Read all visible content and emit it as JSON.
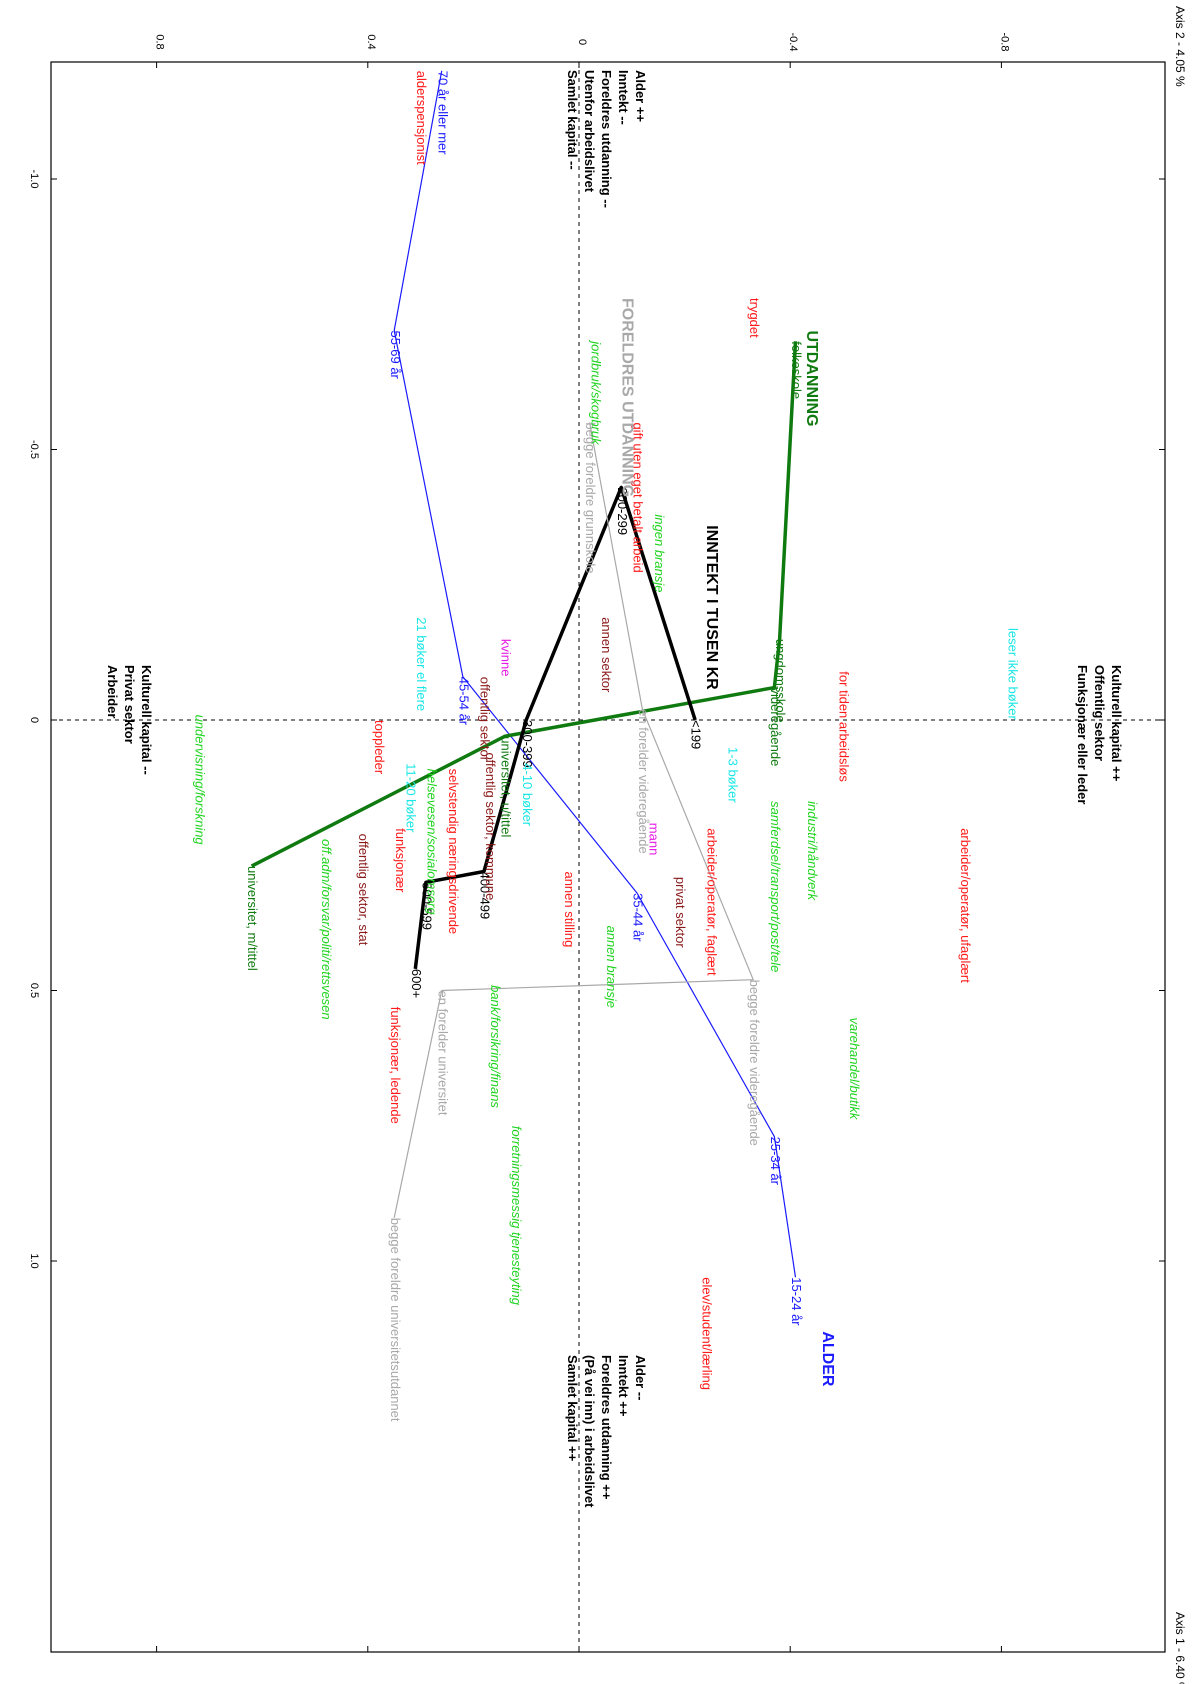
{
  "chart_data": {
    "type": "scatter",
    "title": "",
    "xaxis": {
      "label": "Axis 1 - 6.40 %",
      "range": [
        -1.5,
        1.3
      ],
      "ticks": [
        {
          "value": -1.0,
          "label": "-1.0"
        },
        {
          "value": -0.5,
          "label": "-0.5"
        },
        {
          "value": 0.0,
          "label": "0"
        },
        {
          "value": 0.5,
          "label": "0.5"
        },
        {
          "value": 1.0,
          "label": "1.0"
        }
      ]
    },
    "yaxis": {
      "label": "Axis 2 - 4.05 %",
      "range": [
        -1.12,
        1.0
      ],
      "ticks": [
        {
          "value": -0.8,
          "label": "-0.8"
        },
        {
          "value": -0.4,
          "label": "-0.4"
        },
        {
          "value": 0.0,
          "label": "0"
        },
        {
          "value": 0.4,
          "label": "0.4"
        },
        {
          "value": 0.8,
          "label": "0.8"
        }
      ]
    },
    "grid": false,
    "colors": {
      "red": "#ff1a1a",
      "blue": "#1a1aff",
      "green": "#1fd41f",
      "darkgreen": "#0f7a0f",
      "cyan": "#1ae6e6",
      "gray": "#a8a8a8",
      "magenta": "#e61ae6",
      "black": "#000000",
      "maroon": "#8b1a1a"
    },
    "pole_labels": [
      {
        "anchor": "top-left",
        "lines": [
          "Alder ++",
          "Inntekt --",
          "Foreldres utdanning --",
          "Utenfor arbeidslivet",
          "Samlet kapital --"
        ]
      },
      {
        "anchor": "top-right",
        "lines": [
          "Kulturell kapital ++",
          "Offentlig sektor",
          "Funksjonær eller leder"
        ]
      },
      {
        "anchor": "bottom-left",
        "lines": [
          "Kulturell kapital --",
          "Privat sektor",
          "Arbeider"
        ]
      },
      {
        "anchor": "bottom-right",
        "lines": [
          "Alder --",
          "Inntekt ++",
          "Foreldres utdanning ++",
          "(På vei inn) i arbeidslivet",
          "Samlet kapital ++"
        ]
      }
    ],
    "group_titles": [
      {
        "label": "FORELDRES UTDANNING",
        "color": "gray",
        "x": -0.78,
        "y": -0.09,
        "size": 16,
        "bold": true
      },
      {
        "label": "UTDANNING",
        "color": "darkgreen",
        "x": -0.72,
        "y": -0.44,
        "size": 16,
        "bold": true
      },
      {
        "label": "INNTEKT I TUSEN KR",
        "color": "black",
        "x": -0.36,
        "y": -0.25,
        "size": 16,
        "bold": true
      },
      {
        "label": "ALDER",
        "color": "blue",
        "x": 1.13,
        "y": -0.47,
        "size": 16,
        "bold": true
      }
    ],
    "series": [
      {
        "name": "ALDER",
        "color": "blue",
        "stroke_width": 1.2,
        "points": [
          {
            "label": "70 år eller mer",
            "x": -1.2,
            "y": 0.26
          },
          {
            "label": "55-69 år",
            "x": -0.72,
            "y": 0.35
          },
          {
            "label": "45-54 år",
            "x": -0.08,
            "y": 0.22
          },
          {
            "label": "35-44 år",
            "x": 0.32,
            "y": -0.11
          },
          {
            "label": "25-34 år",
            "x": 0.77,
            "y": -0.37
          },
          {
            "label": "15-24 år",
            "x": 1.03,
            "y": -0.41
          }
        ]
      },
      {
        "name": "UTDANNING",
        "color": "darkgreen",
        "stroke_width": 3.5,
        "points": [
          {
            "label": "folkeskole",
            "x": -0.7,
            "y": -0.41
          },
          {
            "label": "ungdomsskole",
            "x": -0.15,
            "y": -0.38
          },
          {
            "label": "videregående",
            "x": -0.06,
            "y": -0.37
          },
          {
            "label": "universitet, u/tittel",
            "x": 0.03,
            "y": 0.14
          },
          {
            "label": "universitet, m/tittel",
            "x": 0.27,
            "y": 0.62
          }
        ]
      },
      {
        "name": "INNTEKT I TUSEN KR",
        "color": "black",
        "stroke_width": 3.5,
        "points": [
          {
            "label": "<199",
            "x": 0.0,
            "y": -0.22
          },
          {
            "label": "200-299",
            "x": -0.43,
            "y": -0.08
          },
          {
            "label": "300-399",
            "x": 0.0,
            "y": 0.1
          },
          {
            "label": "400-499",
            "x": 0.28,
            "y": 0.18
          },
          {
            "label": "500-599",
            "x": 0.3,
            "y": 0.29
          },
          {
            "label": "600+",
            "x": 0.46,
            "y": 0.31
          }
        ]
      },
      {
        "name": "FORELDRES UTDANNING",
        "color": "gray",
        "stroke_width": 1.2,
        "points": [
          {
            "label": "begge foreldre grunnskole",
            "x": -0.55,
            "y": -0.02
          },
          {
            "label": "en forelder videregående",
            "x": -0.02,
            "y": -0.12
          },
          {
            "label": "begge foreldre videregående",
            "x": 0.48,
            "y": -0.33
          },
          {
            "label": "en forelder universitet",
            "x": 0.5,
            "y": 0.26
          },
          {
            "label": "begge foreldre universitetsutdannet",
            "x": 0.92,
            "y": 0.35
          }
        ]
      }
    ],
    "points": [
      {
        "label": "alderspensjonist",
        "color": "red",
        "x": -1.2,
        "y": 0.3
      },
      {
        "label": "trygdet",
        "color": "red",
        "x": -0.78,
        "y": -0.33
      },
      {
        "label": "jordbruk/skogbruk",
        "color": "green",
        "x": -0.7,
        "y": -0.03,
        "italic": true
      },
      {
        "label": "gift uten eget betalt arbeid",
        "color": "red",
        "x": -0.55,
        "y": -0.11
      },
      {
        "label": "ingen bransje",
        "color": "green",
        "x": -0.38,
        "y": -0.15,
        "italic": true
      },
      {
        "label": "annen sektor",
        "color": "maroon",
        "x": -0.19,
        "y": -0.05
      },
      {
        "label": "leser ikke bøker",
        "color": "cyan",
        "x": -0.17,
        "y": -0.82
      },
      {
        "label": "for tiden arbeidsløs",
        "color": "red",
        "x": -0.09,
        "y": -0.5
      },
      {
        "label": "21 bøker el flere",
        "color": "cyan",
        "x": -0.19,
        "y": 0.3
      },
      {
        "label": "kvinne",
        "color": "magenta",
        "x": -0.15,
        "y": 0.14
      },
      {
        "label": "offentlig sektor",
        "color": "maroon",
        "x": -0.08,
        "y": 0.18
      },
      {
        "label": "selvstendig næringsdrivende",
        "color": "red",
        "x": 0.09,
        "y": 0.24
      },
      {
        "label": "undervisning/forskning",
        "color": "green",
        "x": -0.01,
        "y": 0.72,
        "italic": true
      },
      {
        "label": "toppleder",
        "color": "red",
        "x": 0.0,
        "y": 0.38
      },
      {
        "label": "helsevesen/sosialomsorg",
        "color": "green",
        "x": 0.09,
        "y": 0.28,
        "italic": true
      },
      {
        "label": "11-20 bøker",
        "color": "cyan",
        "x": 0.08,
        "y": 0.32
      },
      {
        "label": "offentlig sektor, kommune",
        "color": "maroon",
        "x": 0.06,
        "y": 0.17
      },
      {
        "label": "4-10 bøker",
        "color": "cyan",
        "x": 0.08,
        "y": 0.1
      },
      {
        "label": "1-3 bøker",
        "color": "cyan",
        "x": 0.05,
        "y": -0.29
      },
      {
        "label": "samferdsel/transport/post/tele",
        "color": "green",
        "x": 0.15,
        "y": -0.37,
        "italic": true
      },
      {
        "label": "industri/håndverk",
        "color": "green",
        "x": 0.15,
        "y": -0.44,
        "italic": true
      },
      {
        "label": "arbeider/operatør, faglært",
        "color": "red",
        "x": 0.2,
        "y": -0.25
      },
      {
        "label": "mann",
        "color": "magenta",
        "x": 0.19,
        "y": -0.14
      },
      {
        "label": "arbeider/operatør, ufaglært",
        "color": "red",
        "x": 0.2,
        "y": -0.73
      },
      {
        "label": "privat sektor",
        "color": "maroon",
        "x": 0.29,
        "y": -0.19
      },
      {
        "label": "annen stilling",
        "color": "red",
        "x": 0.28,
        "y": 0.02
      },
      {
        "label": "annen bransje",
        "color": "green",
        "x": 0.38,
        "y": -0.06,
        "italic": true
      },
      {
        "label": "funksjonær",
        "color": "red",
        "x": 0.2,
        "y": 0.34
      },
      {
        "label": "offentlig sektor, stat",
        "color": "maroon",
        "x": 0.21,
        "y": 0.41
      },
      {
        "label": "off.adm/forsvar/politi/rettsvesen",
        "color": "green",
        "x": 0.22,
        "y": 0.48,
        "italic": true
      },
      {
        "label": "funksjonær, ledende",
        "color": "red",
        "x": 0.53,
        "y": 0.35
      },
      {
        "label": "bank/forsikring/finans",
        "color": "green",
        "x": 0.49,
        "y": 0.16,
        "italic": true
      },
      {
        "label": "forretningsmessig tjenesteyting",
        "color": "green",
        "x": 0.75,
        "y": 0.12,
        "italic": true
      },
      {
        "label": "varehandel/butikk",
        "color": "green",
        "x": 0.55,
        "y": -0.52,
        "italic": true
      },
      {
        "label": "elev/student/lærling",
        "color": "red",
        "x": 1.03,
        "y": -0.24
      }
    ]
  }
}
